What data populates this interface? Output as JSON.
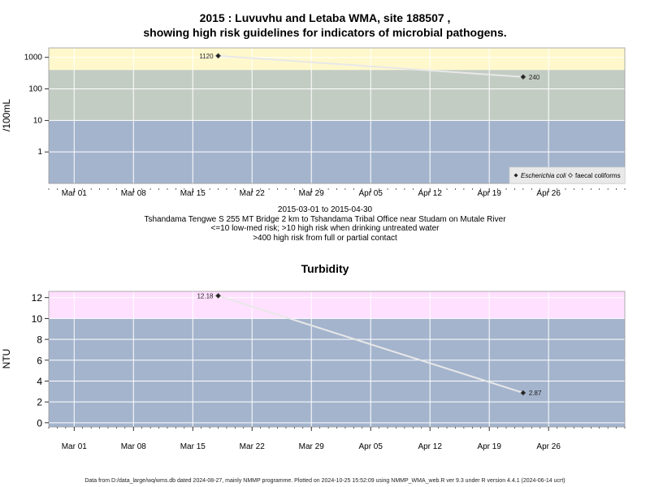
{
  "colors": {
    "zone_low": "#a4b4cd",
    "zone_med": "#c3ccc3",
    "zone_high": "#fff8cc",
    "zone_turb_high": "#ffe0ff",
    "line": "#e8e8e8",
    "point": "#222222"
  },
  "chart_data": [
    {
      "type": "line",
      "title": "2015 : Luvuvhu and Letaba WMA, site 188507 ,",
      "subtitle": "showing high risk guidelines for indicators of microbial pathogens.",
      "ylabel": "/100mL",
      "yscale": "log",
      "yticks": [
        1,
        10,
        100,
        1000
      ],
      "ytick_labels": [
        "1",
        "10",
        "100",
        "1000"
      ],
      "ylim": [
        0.1,
        2000
      ],
      "xlim": [
        "2015-02-26",
        "2015-05-05"
      ],
      "xticks": [
        "2015-03-01",
        "2015-03-08",
        "2015-03-15",
        "2015-03-22",
        "2015-03-29",
        "2015-04-05",
        "2015-04-12",
        "2015-04-19",
        "2015-04-26"
      ],
      "xtick_labels": [
        "Mar 01",
        "Mar 08",
        "Mar 15",
        "Mar 22",
        "Mar 29",
        "Apr 05",
        "Apr 12",
        "Apr 19",
        "Apr 26"
      ],
      "zones": [
        {
          "from": 0.1,
          "to": 10,
          "color": "#a4b4cd"
        },
        {
          "from": 10,
          "to": 400,
          "color": "#c3ccc3"
        },
        {
          "from": 400,
          "to": 2000,
          "color": "#fff8cc"
        }
      ],
      "series": [
        {
          "name": "Escherichia coli",
          "x": [
            "2015-03-18",
            "2015-04-23"
          ],
          "y": [
            1120,
            240
          ],
          "labels": [
            "1120",
            "240"
          ],
          "marker": "filled-diamond"
        },
        {
          "name": "faecal coliforms",
          "x": [],
          "y": [],
          "marker": "open-diamond"
        }
      ],
      "legend": "bottom-right",
      "caption": [
        "2015-03-01 to 2015-04-30",
        "Tshandama Tengwe S 255 MT Bridge 2 km to Tshandama Tribal Office near Studam on Mutale River",
        "<=10 low-med risk; >10 high risk when drinking untreated water",
        ">400 high risk from full or partial contact"
      ]
    },
    {
      "type": "line",
      "title": "Turbidity",
      "ylabel": "NTU",
      "yscale": "linear",
      "yticks": [
        0,
        2,
        4,
        6,
        8,
        10,
        12
      ],
      "ytick_labels": [
        "0",
        "2",
        "4",
        "6",
        "8",
        "10",
        "12"
      ],
      "ylim": [
        -0.4,
        12.6
      ],
      "xlim": [
        "2015-02-26",
        "2015-05-05"
      ],
      "xticks": [
        "2015-03-01",
        "2015-03-08",
        "2015-03-15",
        "2015-03-22",
        "2015-03-29",
        "2015-04-05",
        "2015-04-12",
        "2015-04-19",
        "2015-04-26"
      ],
      "xtick_labels": [
        "Mar 01",
        "Mar 08",
        "Mar 15",
        "Mar 22",
        "Mar 29",
        "Apr 05",
        "Apr 12",
        "Apr 19",
        "Apr 26"
      ],
      "zones": [
        {
          "from": -0.4,
          "to": 10,
          "color": "#a4b4cd"
        },
        {
          "from": 10,
          "to": 12.6,
          "color": "#ffe0ff"
        }
      ],
      "series": [
        {
          "x": [
            "2015-03-18",
            "2015-04-23"
          ],
          "y": [
            12.18,
            2.87
          ],
          "labels": [
            "12.18",
            "2.87"
          ],
          "marker": "filled-diamond"
        }
      ]
    }
  ],
  "footer": "Data from D:/data_large/wq/wms.db dated 2024-08-27, mainly NMMP programme. Plotted on 2024-10-25 15:52:09 using NMMP_WMA_web.R ver 9.3 under R version 4.4.1 (2024-06-14 ucrt)"
}
